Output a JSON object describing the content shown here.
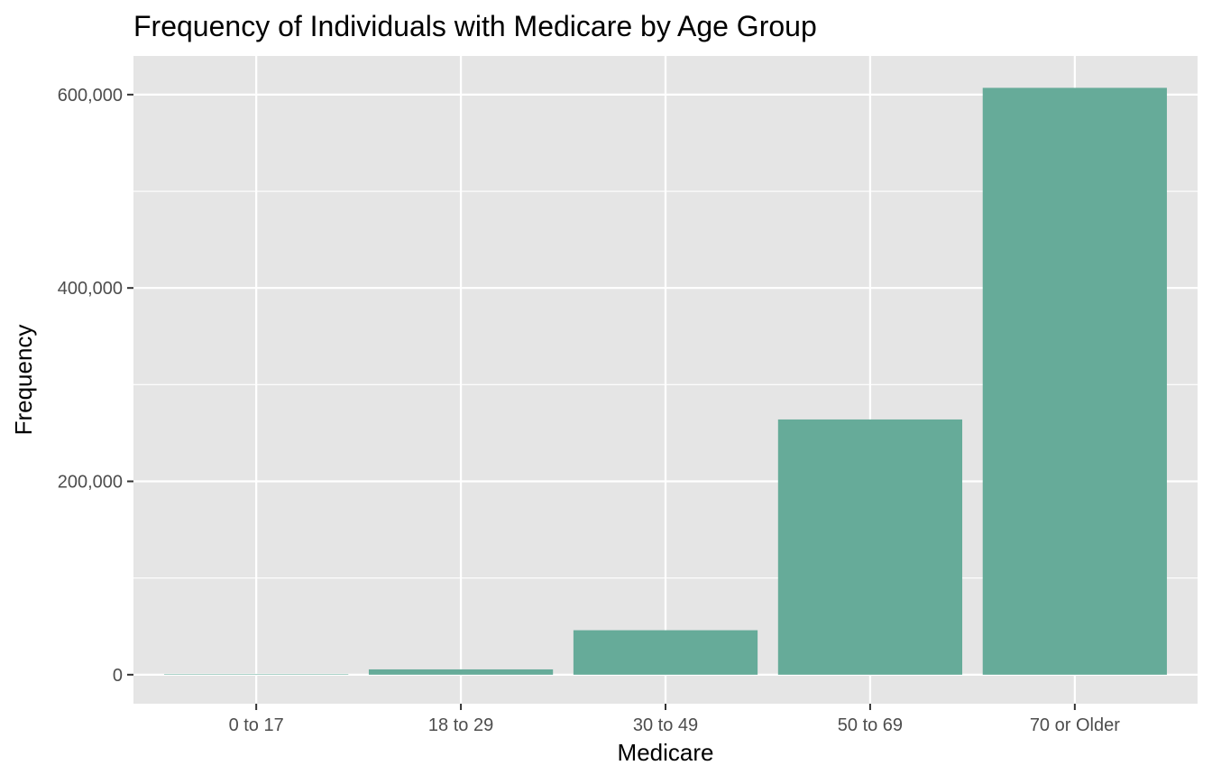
{
  "chart_data": {
    "type": "bar",
    "title": "Frequency of Individuals with Medicare by Age Group",
    "xlabel": "Medicare",
    "ylabel": "Frequency",
    "categories": [
      "0 to 17",
      "18 to 29",
      "30 to 49",
      "50 to 69",
      "70 or Older"
    ],
    "values": [
      500,
      5500,
      46000,
      264000,
      607000
    ],
    "ylim": [
      -30000,
      640000
    ],
    "yticks": [
      0,
      200000,
      400000,
      600000
    ],
    "ytick_labels": [
      "0",
      "200,000",
      "400,000",
      "600,000"
    ],
    "grid": true,
    "legend": "none",
    "colors": {
      "panel_background": "#e5e5e5",
      "grid": "#ffffff",
      "bar": "#66ab99",
      "tick_mark": "#333333",
      "tick_label": "#4d4d4d"
    }
  }
}
